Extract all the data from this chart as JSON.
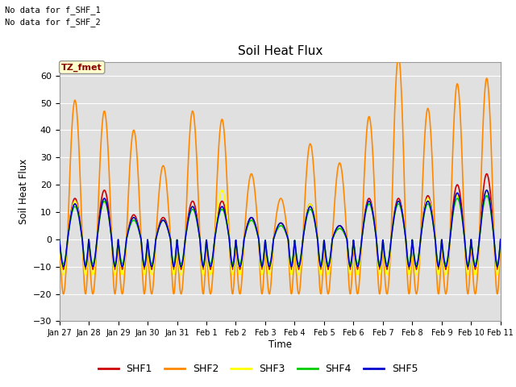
{
  "title": "Soil Heat Flux",
  "ylabel": "Soil Heat Flux",
  "xlabel": "Time",
  "ylim": [
    -30,
    65
  ],
  "yticks": [
    -30,
    -20,
    -10,
    0,
    10,
    20,
    30,
    40,
    50,
    60
  ],
  "series_colors": [
    "#cc0000",
    "#ff8800",
    "#ffff00",
    "#00cc00",
    "#0000cc"
  ],
  "series_names": [
    "SHF1",
    "SHF2",
    "SHF3",
    "SHF4",
    "SHF5"
  ],
  "series_linewidths": [
    1.2,
    1.2,
    1.2,
    1.2,
    1.2
  ],
  "note1": "No data for f_SHF_1",
  "note2": "No data for f_SHF_2",
  "legend_label": "TZ_fmet",
  "background_color": "#ffffff",
  "plot_bg_color": "#e0e0e0",
  "grid_color": "#ffffff",
  "tick_labels": [
    "Jan 27",
    "Jan 28",
    "Jan 29",
    "Jan 30",
    "Jan 31",
    "Feb 1",
    "Feb 2",
    "Feb 3",
    "Feb 4",
    "Feb 5",
    "Feb 6",
    "Feb 7",
    "Feb 8",
    "Feb 9",
    "Feb 10",
    "Feb 11"
  ],
  "n_days": 15,
  "pts_per_day": 144,
  "peaks2": [
    51,
    47,
    40,
    27,
    47,
    44,
    24,
    15,
    35,
    28,
    45,
    67,
    48,
    57,
    59
  ],
  "peaks1": [
    15,
    18,
    9,
    8,
    14,
    14,
    8,
    6,
    13,
    5,
    15,
    15,
    16,
    20,
    24
  ],
  "peaks3": [
    14,
    14,
    8,
    7,
    12,
    18,
    7,
    6,
    13,
    4,
    14,
    14,
    15,
    16,
    18
  ],
  "peaks4": [
    12,
    14,
    7,
    7,
    11,
    11,
    7,
    5,
    11,
    4,
    13,
    13,
    13,
    15,
    16
  ],
  "peaks5": [
    13,
    15,
    8,
    7,
    12,
    12,
    8,
    6,
    12,
    5,
    14,
    14,
    14,
    17,
    18
  ],
  "night_amps": {
    "shf1": 11,
    "shf2": 20,
    "shf3": 13,
    "shf4": 9,
    "shf5": 10
  }
}
